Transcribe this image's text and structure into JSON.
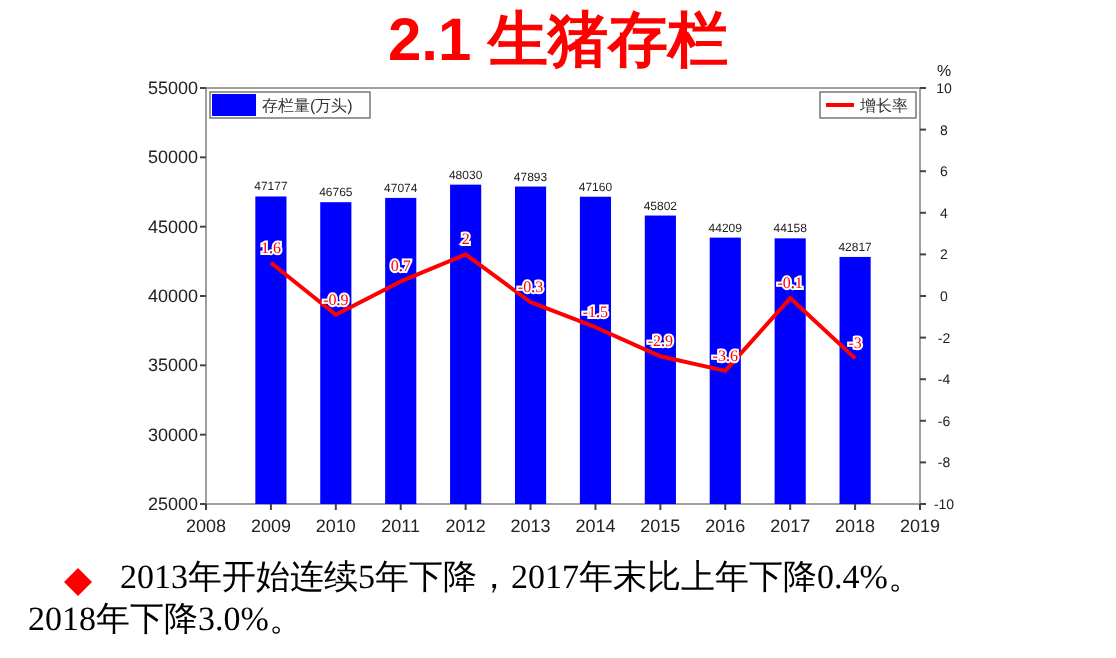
{
  "chart_data": {
    "type": "bar",
    "title": "2.1  生猪存栏",
    "x": [
      2009,
      2010,
      2011,
      2012,
      2013,
      2014,
      2015,
      2016,
      2017,
      2018
    ],
    "series": [
      {
        "name": "存栏量(万头)",
        "color": "#0000ff",
        "values": [
          47177,
          46765,
          47074,
          48030,
          47893,
          47160,
          45802,
          44209,
          44158,
          42817
        ]
      },
      {
        "name": "增长率",
        "type": "line",
        "axis": "y2",
        "color": "#ff0000",
        "marker": "none",
        "values": [
          1.6,
          -0.9,
          0.7,
          2,
          -0.3,
          -1.5,
          -2.9,
          -3.6,
          -0.1,
          -3
        ]
      }
    ],
    "xlim": [
      2008,
      2019
    ],
    "xticks": [
      2008,
      2009,
      2010,
      2011,
      2012,
      2013,
      2014,
      2015,
      2016,
      2017,
      2018,
      2019
    ],
    "ylim": [
      25000,
      55000
    ],
    "yticks": [
      25000,
      30000,
      35000,
      40000,
      45000,
      50000,
      55000
    ],
    "y2lim": [
      -10,
      10
    ],
    "y2ticks": [
      -10,
      -8,
      -6,
      -4,
      -2,
      0,
      2,
      4,
      6,
      8,
      10
    ],
    "y2label": "%",
    "data_labels": true,
    "legend": "top",
    "grid": false,
    "annotations": [
      "2013年开始连续5年下降，2017年末比上年下降0.4%。2018年下降3.0%。"
    ]
  }
}
